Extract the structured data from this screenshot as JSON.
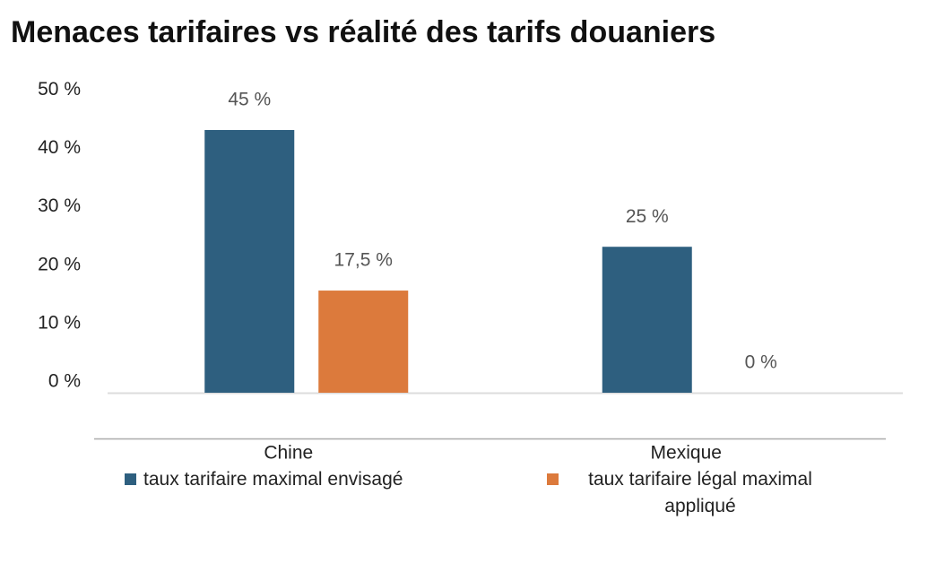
{
  "chart_data": {
    "type": "bar",
    "title": "Menaces tarifaires vs réalité des tarifs douaniers",
    "categories": [
      "Chine",
      "Mexique"
    ],
    "series": [
      {
        "name": "taux tarifaire maximal envisagé",
        "color": "#2e5f7f",
        "values": [
          45,
          25
        ],
        "value_labels": [
          "45 %",
          "25 %"
        ]
      },
      {
        "name": "taux tarifaire légal maximal appliqué",
        "color": "#dc7a3c",
        "values": [
          17.5,
          0
        ],
        "value_labels": [
          "17,5 %",
          "0 %"
        ]
      }
    ],
    "ylim": [
      0,
      50
    ],
    "yticks": [
      {
        "value": 0,
        "label": "0 %"
      },
      {
        "value": 10,
        "label": "10 %"
      },
      {
        "value": 20,
        "label": "20 %"
      },
      {
        "value": 30,
        "label": "30 %"
      },
      {
        "value": 40,
        "label": "40 %"
      },
      {
        "value": 50,
        "label": "50 %"
      }
    ],
    "grid": false,
    "legend": "bottom"
  }
}
